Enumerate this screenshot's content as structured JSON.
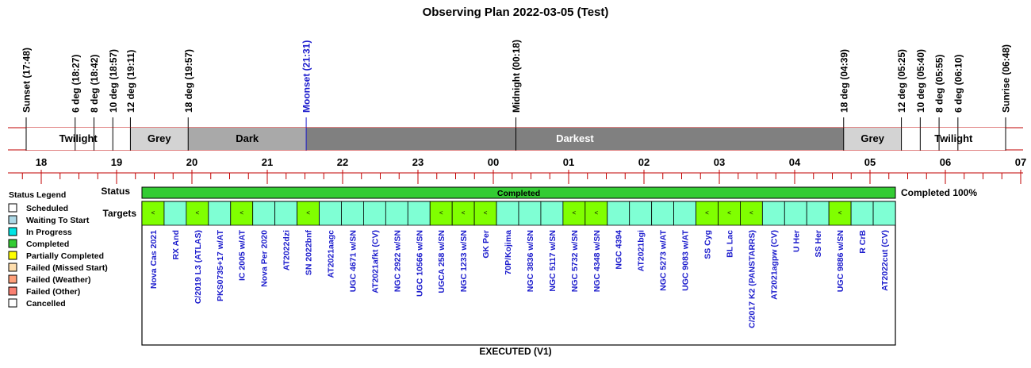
{
  "chart_data": {
    "type": "timeline",
    "title": "Observing Plan 2022-03-05 (Test)",
    "hours": [
      "18",
      "19",
      "20",
      "21",
      "22",
      "23",
      "00",
      "01",
      "02",
      "03",
      "04",
      "05",
      "06",
      "07"
    ],
    "events": [
      {
        "time": "17:48",
        "label": "Sunset (17:48)",
        "color": "#000000"
      },
      {
        "time": "18:27",
        "label": "6 deg (18:27)",
        "color": "#000000"
      },
      {
        "time": "18:42",
        "label": "8 deg (18:42)",
        "color": "#000000"
      },
      {
        "time": "18:57",
        "label": "10 deg (18:57)",
        "color": "#000000"
      },
      {
        "time": "19:11",
        "label": "12 deg (19:11)",
        "color": "#000000"
      },
      {
        "time": "19:57",
        "label": "18 deg (19:57)",
        "color": "#000000"
      },
      {
        "time": "21:31",
        "label": "Moonset (21:31)",
        "color": "#1a1acc"
      },
      {
        "time": "00:18",
        "label": "Midnight (00:18)",
        "color": "#000000"
      },
      {
        "time": "04:39",
        "label": "18 deg (04:39)",
        "color": "#000000"
      },
      {
        "time": "05:25",
        "label": "12 deg (05:25)",
        "color": "#000000"
      },
      {
        "time": "05:40",
        "label": "10 deg (05:40)",
        "color": "#000000"
      },
      {
        "time": "05:55",
        "label": "8 deg (05:55)",
        "color": "#000000"
      },
      {
        "time": "06:10",
        "label": "6 deg (06:10)",
        "color": "#000000"
      },
      {
        "time": "06:48",
        "label": "Sunrise (06:48)",
        "color": "#000000"
      }
    ],
    "bands": [
      {
        "start": "17:48",
        "end": "19:11",
        "label": "Twilight",
        "fill": "#ffffff",
        "text": "#000000"
      },
      {
        "start": "19:11",
        "end": "19:57",
        "label": "Grey",
        "fill": "#d3d3d3",
        "text": "#000000"
      },
      {
        "start": "19:57",
        "end": "21:31",
        "label": "Dark",
        "fill": "#a9a9a9",
        "text": "#000000"
      },
      {
        "start": "21:31",
        "end": "04:39",
        "label": "Darkest",
        "fill": "#808080",
        "text": "#ffffff"
      },
      {
        "start": "04:39",
        "end": "05:25",
        "label": "Grey",
        "fill": "#d3d3d3",
        "text": "#000000"
      },
      {
        "start": "05:25",
        "end": "06:48",
        "label": "Twilight",
        "fill": "#ffffff",
        "text": "#000000"
      }
    ],
    "status_row_label": "Status",
    "targets_row_label": "Targets",
    "status": {
      "label": "Completed",
      "summary": "Completed 100%",
      "color": "#33cc33"
    },
    "completed_marker": "<",
    "target_colors": {
      "completed": "#80ff00",
      "default": "#7fffd4"
    },
    "targets": [
      {
        "name": "Nova Cas 2021",
        "completed": true
      },
      {
        "name": "RX And",
        "completed": false
      },
      {
        "name": "C/2019 L3 (ATLAS)",
        "completed": true
      },
      {
        "name": "PKS0735+17 w/AT",
        "completed": false
      },
      {
        "name": "IC 2005 w/AT",
        "completed": true
      },
      {
        "name": "Nova Per 2020",
        "completed": false
      },
      {
        "name": "AT2022dzi",
        "completed": false
      },
      {
        "name": "SN 2022bnf",
        "completed": true
      },
      {
        "name": "AT2021aagc",
        "completed": false
      },
      {
        "name": "UGC 4671 w/SN",
        "completed": false
      },
      {
        "name": "AT2021afkt (CV)",
        "completed": false
      },
      {
        "name": "NGC 2922 w/SN",
        "completed": false
      },
      {
        "name": "UGC 10566 w/SN",
        "completed": false
      },
      {
        "name": "UGCA 258 w/SN",
        "completed": true
      },
      {
        "name": "NGC 1233 w/SN",
        "completed": true
      },
      {
        "name": "GK Per",
        "completed": true
      },
      {
        "name": "70P/Kojima",
        "completed": false
      },
      {
        "name": "NGC 3836 w/SN",
        "completed": false
      },
      {
        "name": "NGC 5117 w/SN",
        "completed": false
      },
      {
        "name": "NGC 5732 w/SN",
        "completed": true
      },
      {
        "name": "NGC 4348 w/SN",
        "completed": true
      },
      {
        "name": "NGC 4394",
        "completed": false
      },
      {
        "name": "AT2021bgi",
        "completed": false
      },
      {
        "name": "NGC 5273 w/AT",
        "completed": false
      },
      {
        "name": "UGC 9083 w/AT",
        "completed": false
      },
      {
        "name": "SS Cyg",
        "completed": true
      },
      {
        "name": "BL Lac",
        "completed": true
      },
      {
        "name": "C/2017 K2 (PANSTARRS)",
        "completed": true
      },
      {
        "name": "AT2021agpw (CV)",
        "completed": false
      },
      {
        "name": "U Her",
        "completed": false
      },
      {
        "name": "SS Her",
        "completed": false
      },
      {
        "name": "UGC 9886 w/SN",
        "completed": true
      },
      {
        "name": "R CrB",
        "completed": false
      },
      {
        "name": "AT2022cut (CV)",
        "completed": false
      }
    ],
    "legend": {
      "title": "Status Legend",
      "items": [
        {
          "label": "Scheduled",
          "color": "#ffffff"
        },
        {
          "label": "Waiting To Start",
          "color": "#add8e6"
        },
        {
          "label": "In Progress",
          "color": "#00e5e5"
        },
        {
          "label": "Completed",
          "color": "#33cc33"
        },
        {
          "label": "Partially Completed",
          "color": "#ffff00"
        },
        {
          "label": "Failed (Missed Start)",
          "color": "#ffdead"
        },
        {
          "label": "Failed (Weather)",
          "color": "#ffa07a"
        },
        {
          "label": "Failed (Other)",
          "color": "#fa8072"
        },
        {
          "label": "Cancelled",
          "color": "#ffffff"
        }
      ]
    },
    "footer": "EXECUTED (V1)"
  }
}
